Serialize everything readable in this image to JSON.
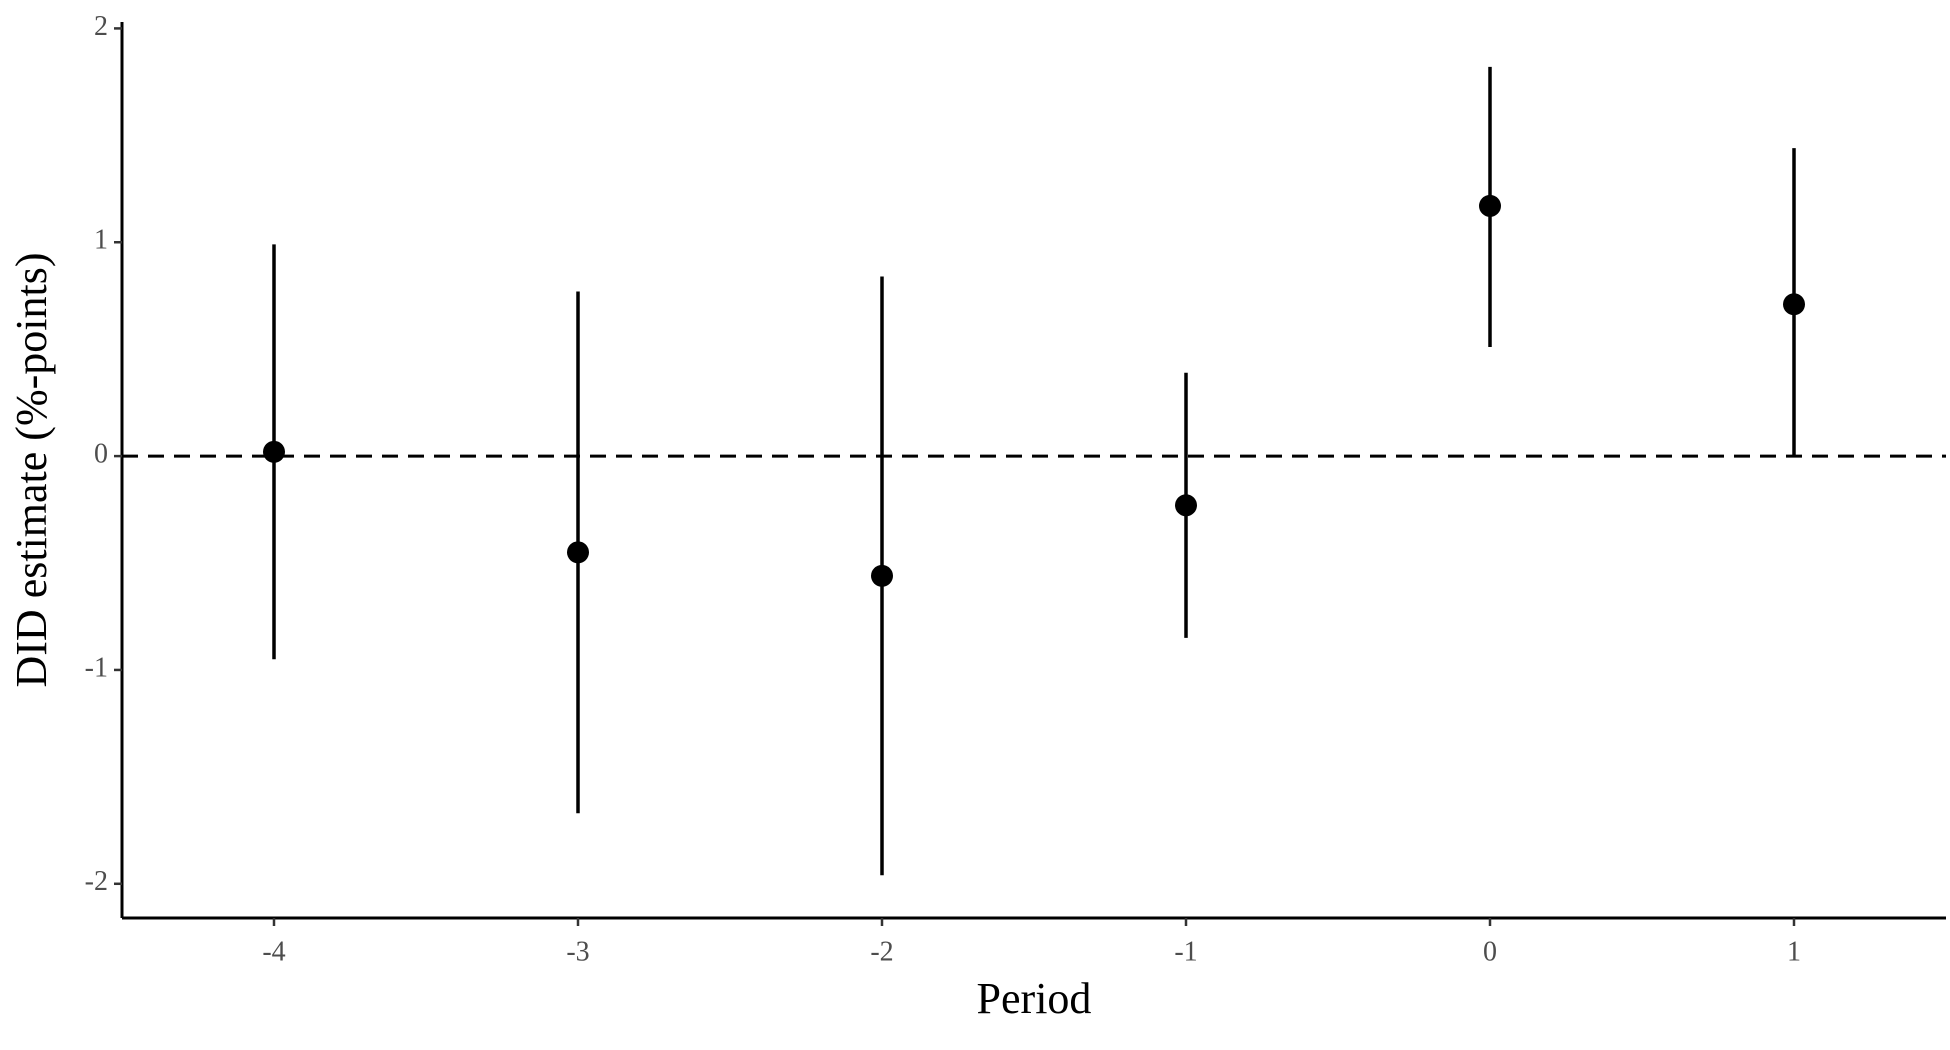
{
  "chart_data": {
    "type": "errorbar",
    "x_label": "Period",
    "y_label": "DID estimate (%-points)",
    "x": [
      -4,
      -3,
      -2,
      -1,
      0,
      1
    ],
    "series": [
      {
        "color": "#000000",
        "values": [
          0.02,
          -0.45,
          -0.56,
          -0.23,
          1.17,
          0.71
        ],
        "lower": [
          -0.95,
          -1.67,
          -1.96,
          -0.85,
          0.51,
          0.0
        ],
        "upper": [
          0.99,
          0.77,
          0.84,
          0.39,
          1.82,
          1.44
        ]
      }
    ],
    "xlim": [
      -4.5,
      1.5
    ],
    "xticks": [
      -4,
      -3,
      -2,
      -1,
      0,
      1
    ],
    "ylim": [
      -2.16,
      2.03
    ],
    "yticks": [
      -2,
      -1,
      0,
      1,
      2
    ],
    "hline": 0
  }
}
